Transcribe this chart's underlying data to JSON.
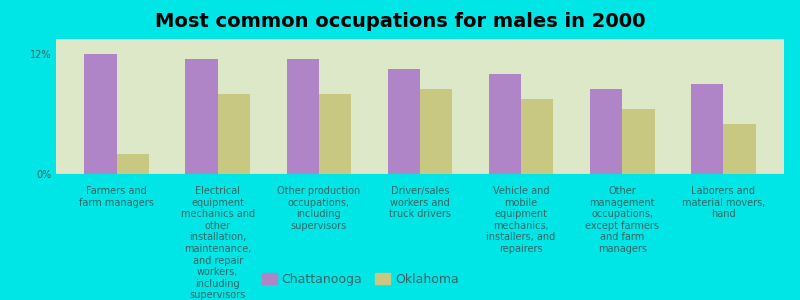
{
  "title": "Most common occupations for males in 2000",
  "categories": [
    "Farmers and\nfarm managers",
    "Electrical\nequipment\nmechanics and\nother\ninstallation,\nmaintenance,\nand repair\nworkers,\nincluding\nsupervisors",
    "Other production\noccupations,\nincluding\nsupervisors",
    "Driver/sales\nworkers and\ntruck drivers",
    "Vehicle and\nmobile\nequipment\nmechanics,\ninstallers, and\nrepairers",
    "Other\nmanagement\noccupations,\nexcept farmers\nand farm\nmanagers",
    "Laborers and\nmaterial movers,\nhand"
  ],
  "chattanooga": [
    12.0,
    11.5,
    11.5,
    10.5,
    10.0,
    8.5,
    9.0
  ],
  "oklahoma": [
    2.0,
    8.0,
    8.0,
    8.5,
    7.5,
    6.5,
    5.0
  ],
  "chattanooga_color": "#b085c8",
  "oklahoma_color": "#c8c882",
  "background_color": "#00e5e5",
  "plot_bg_color": "#dce8c8",
  "yticks": [
    0,
    12
  ],
  "ytick_labels": [
    "0%",
    "12%"
  ],
  "ylim": [
    0,
    13.5
  ],
  "bar_width": 0.32,
  "title_fontsize": 14,
  "tick_fontsize": 7.0,
  "legend_fontsize": 9
}
